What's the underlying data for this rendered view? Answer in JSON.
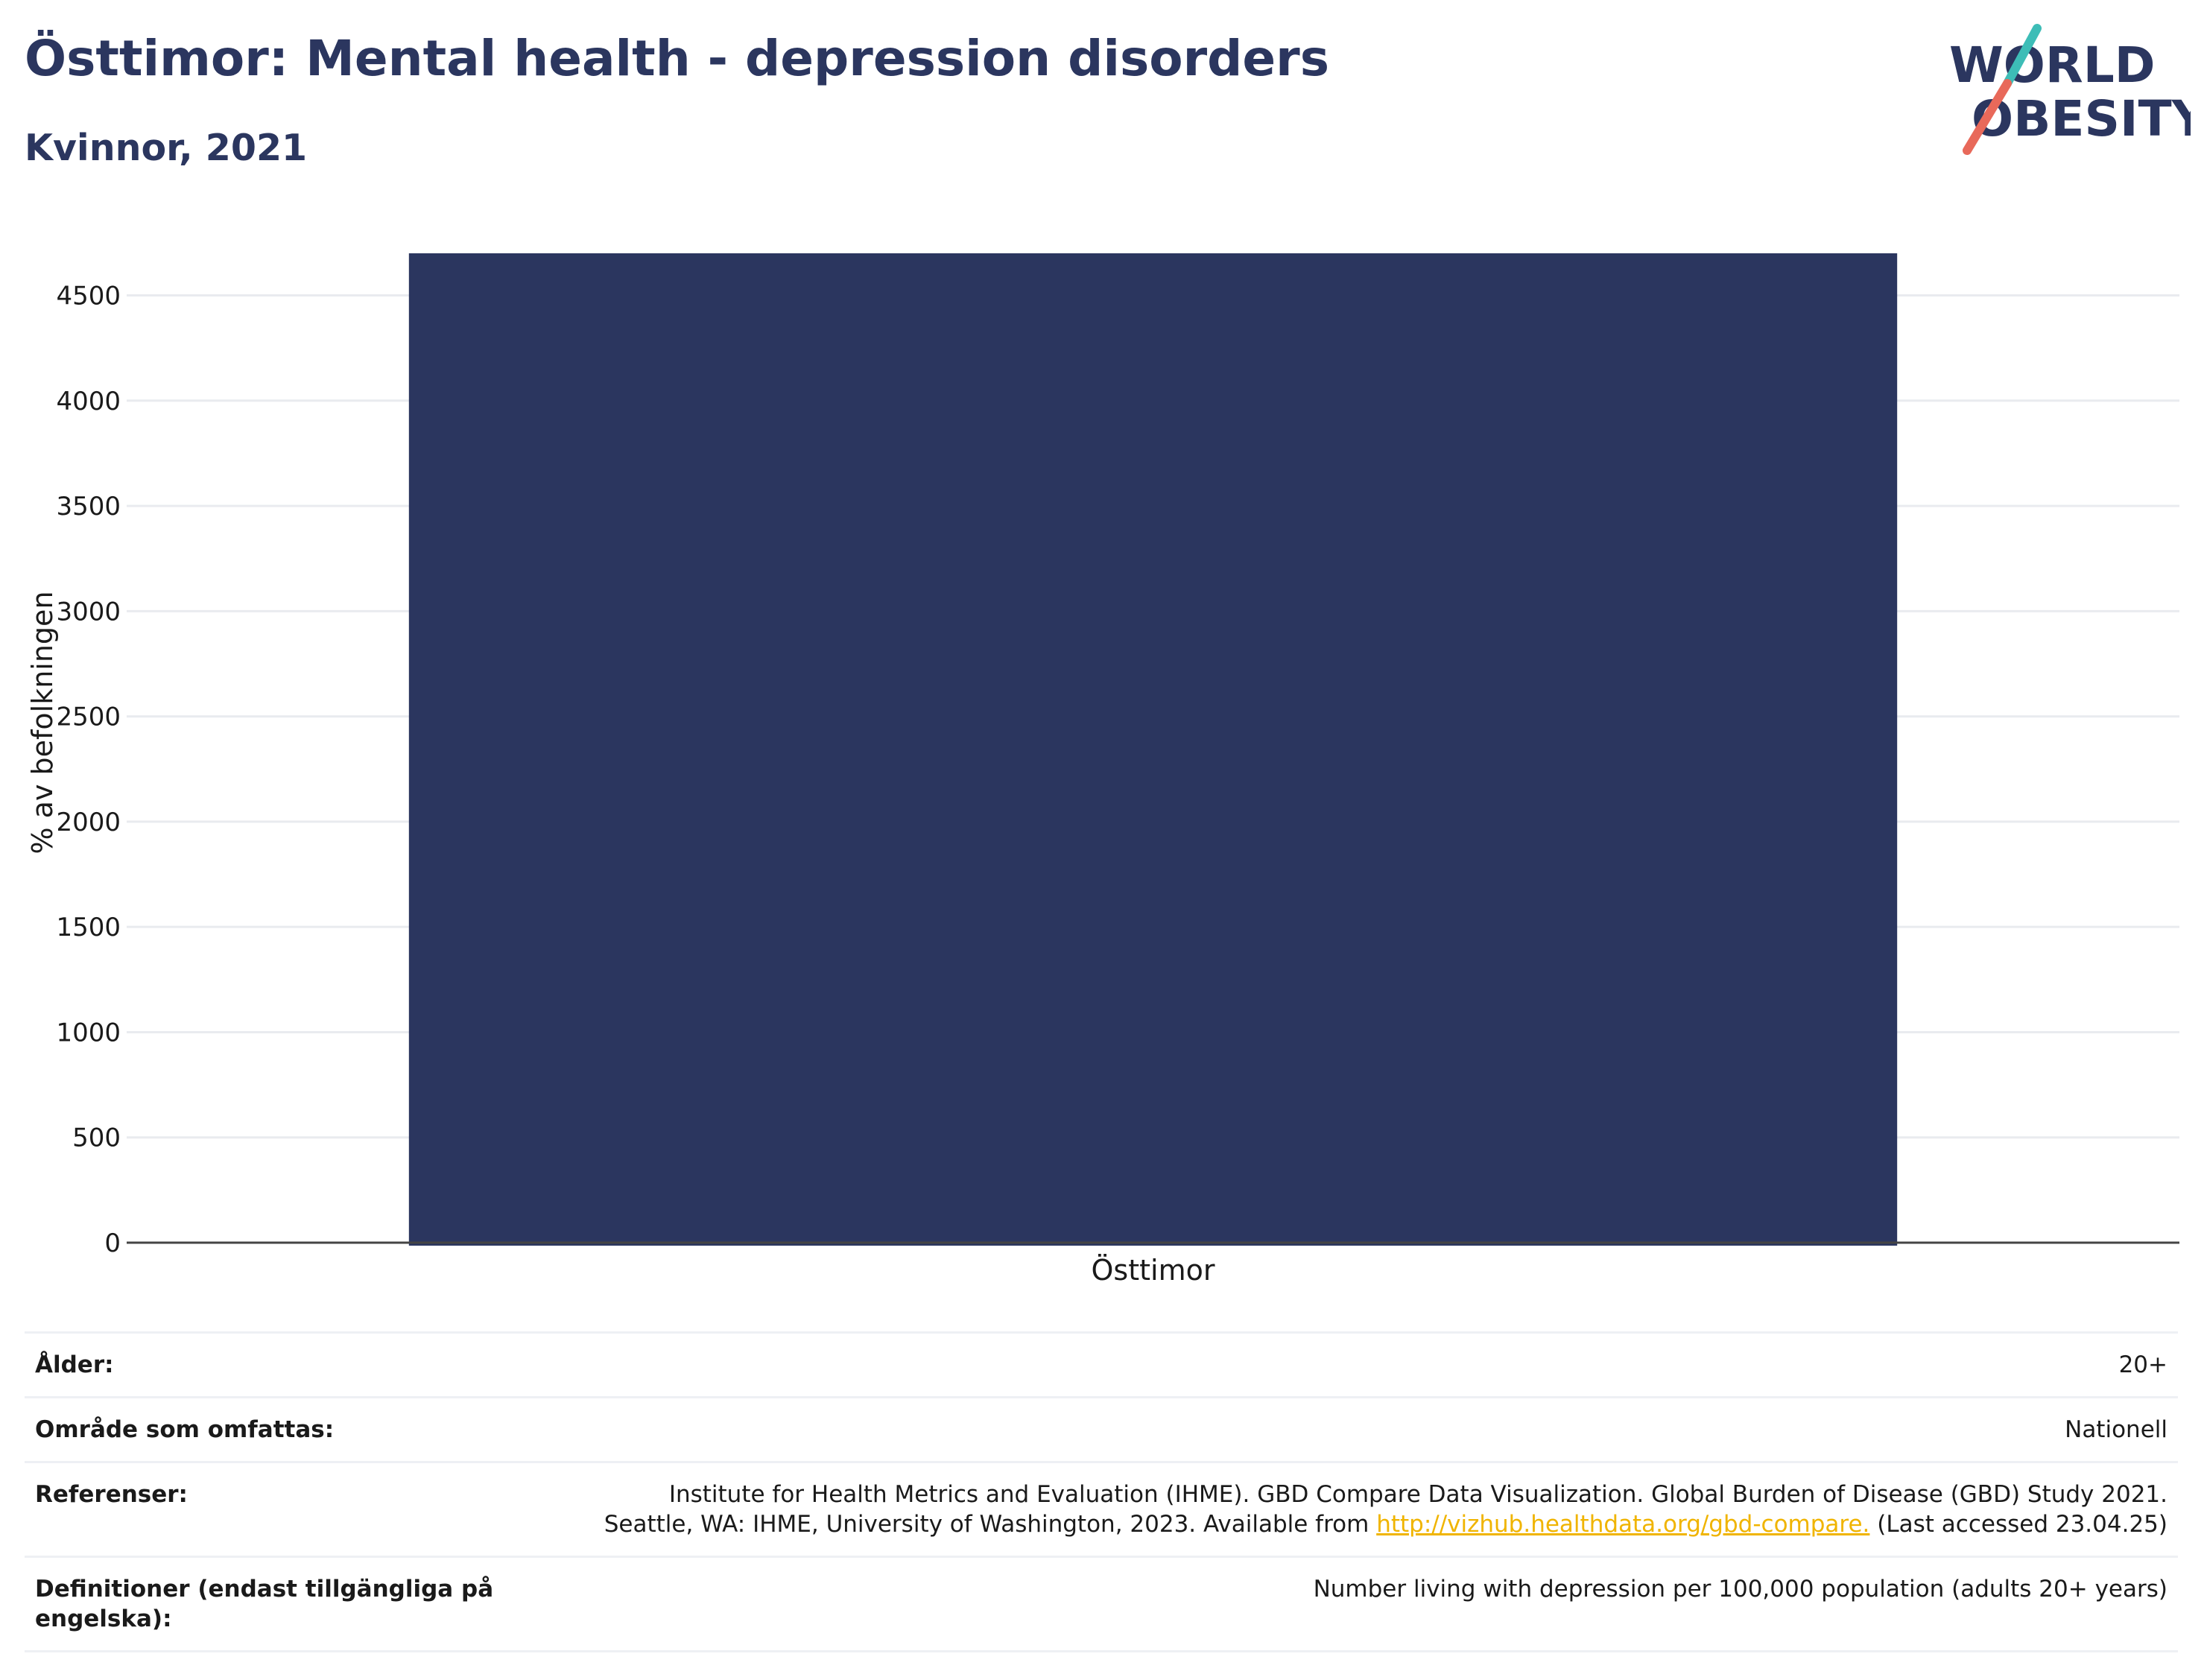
{
  "header": {
    "title": "Östtimor: Mental health - depression disorders",
    "subtitle": "Kvinnor, 2021"
  },
  "logo": {
    "line1": "WORLD",
    "line2": "OBESITY",
    "colors": {
      "text": "#2b365f",
      "slash_top": "#3dbdb7",
      "slash_bottom": "#e8695a"
    }
  },
  "chart_data": {
    "type": "bar",
    "categories": [
      "Östtimor"
    ],
    "values": [
      4700
    ],
    "ylabel": "% av befolkningen",
    "ylim": [
      0,
      4700
    ],
    "yticks": [
      0,
      500,
      1000,
      1500,
      2000,
      2500,
      3000,
      3500,
      4000,
      4500
    ],
    "grid": true,
    "color": "#2b365f"
  },
  "info": {
    "rows": [
      {
        "label": "Ålder:",
        "value": "20+"
      },
      {
        "label": "Område som omfattas:",
        "value": "Nationell"
      },
      {
        "label": "Referenser:",
        "value_line1": "Institute for Health Metrics and Evaluation (IHME). GBD Compare Data Visualization. Global Burden of Disease (GBD) Study 2021.",
        "value_line2_pre": "Seattle, WA: IHME, University of Washington, 2023. Available from",
        "link": "http://vizhub.healthdata.org/gbd-compare.",
        "value_line2_post": "(Last accessed 23.04.25)"
      },
      {
        "label": "Definitioner (endast tillgängliga på engelska):",
        "value": "Number living with depression per 100,000 population (adults 20+ years)"
      }
    ]
  }
}
